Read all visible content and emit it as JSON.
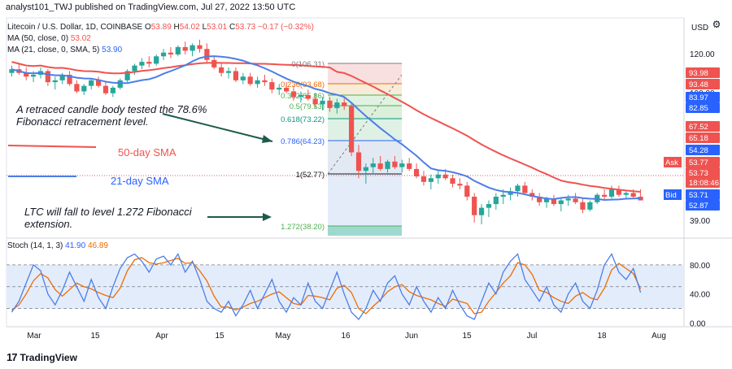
{
  "header": {
    "published": "analyst101_TWJ published on TradingView.com, Jul 27, 2022 13:50 UTC"
  },
  "legend": {
    "symbol": "Litecoin / U.S. Dollar, 1D, COINBASE",
    "o_label": "O",
    "o_value": "53.89",
    "h_label": "H",
    "h_value": "54.02",
    "l_label": "L",
    "l_value": "53.01",
    "c_label": "C",
    "c_value": "53.73",
    "change": "−0.17 (−0.32%)",
    "ma50_label": "MA (50, close, 0)",
    "ma50_value": "53.02",
    "ma21_label": "MA (21, close, 0, SMA, 5)",
    "ma21_value": "53.90"
  },
  "stoch_legend": {
    "label": "Stoch (14, 1, 3)",
    "k_value": "41.90",
    "d_value": "46.89"
  },
  "currency": "USD",
  "footer": {
    "brand": "TradingView"
  },
  "annotations": {
    "fib_tested": [
      "A retraced candle body tested the 78.6%",
      "Fibonacci retracement level."
    ],
    "sma50": "50-day SMA",
    "sma21": "21-day SMA",
    "ltc_fall": [
      "LTC will fall to level 1.272 Fibonacci",
      "extension."
    ]
  },
  "colors": {
    "up": "#26a69a",
    "down": "#ef5350",
    "sma50": "#ef5350",
    "sma21": "#4c7ee8",
    "stoch_k": "#4c7ee8",
    "stoch_d": "#ef6c00",
    "stoch_band": "#e3ecfb"
  },
  "chart_data": [
    {
      "type": "candlestick",
      "title": "Litecoin / U.S. Dollar, 1D, COINBASE",
      "ylim": [
        34,
        144
      ],
      "price_axis_labels": [
        "120.00",
        "100.00",
        "80.00",
        "39.00"
      ],
      "price_tags": [
        {
          "value": "93.98",
          "color": "#ef5350",
          "label": ""
        },
        {
          "value": "93.48",
          "color": "#ef5350",
          "label": ""
        },
        {
          "value": "83.97",
          "color": "#2962ff",
          "label": ""
        },
        {
          "value": "82.85",
          "color": "#2962ff",
          "label": ""
        },
        {
          "value": "67.52",
          "color": "#ef5350",
          "label": ""
        },
        {
          "value": "65.18",
          "color": "#ef5350",
          "label": ""
        },
        {
          "value": "54.28",
          "color": "#2962ff",
          "label": ""
        },
        {
          "value": "53.77",
          "color": "#ef5350",
          "label": "Ask"
        },
        {
          "value": "53.73",
          "color": "#ef5350",
          "label": ""
        },
        {
          "value": "18:08:46",
          "color": "#ef5350",
          "label": ""
        },
        {
          "value": "53.71",
          "color": "#2962ff",
          "label": "Bid"
        },
        {
          "value": "52.87",
          "color": "#2962ff",
          "label": ""
        }
      ],
      "x_ticks": [
        "Mar",
        "15",
        "Apr",
        "15",
        "May",
        "16",
        "Jun",
        "15",
        "Jul",
        "18",
        "Aug"
      ],
      "fibonacci": [
        {
          "ratio": "0",
          "price": "(106.31)"
        },
        {
          "ratio": "0.236",
          "price": "(93.68)"
        },
        {
          "ratio": "0.382",
          "price": "(85.86)"
        },
        {
          "ratio": "0.5",
          "price": "(79.53)"
        },
        {
          "ratio": "0.618",
          "price": "(73.22)"
        },
        {
          "ratio": "0.786",
          "price": "(64.23)"
        },
        {
          "ratio": "1",
          "price": "(52.77)"
        },
        {
          "ratio": "1.272",
          "price": "(38.20)"
        }
      ],
      "series": [
        {
          "name": "MA (50, close, 0)",
          "last": 53.02
        },
        {
          "name": "MA (21, close, 0, SMA, 5)",
          "last": 53.9
        }
      ],
      "candles": [
        [
          123,
          127,
          121,
          125
        ],
        [
          125,
          128,
          122,
          123
        ],
        [
          123,
          126,
          119,
          121
        ],
        [
          121,
          124,
          118,
          122
        ],
        [
          122,
          126,
          120,
          124
        ],
        [
          124,
          125,
          116,
          118
        ],
        [
          118,
          121,
          114,
          119
        ],
        [
          119,
          123,
          117,
          122
        ],
        [
          122,
          124,
          116,
          117
        ],
        [
          117,
          119,
          112,
          113
        ],
        [
          113,
          117,
          111,
          116
        ],
        [
          116,
          120,
          114,
          119
        ],
        [
          119,
          121,
          115,
          116
        ],
        [
          116,
          118,
          111,
          112
        ],
        [
          112,
          116,
          110,
          115
        ],
        [
          115,
          120,
          114,
          119
        ],
        [
          119,
          125,
          118,
          124
        ],
        [
          124,
          128,
          122,
          127
        ],
        [
          127,
          131,
          125,
          129
        ],
        [
          129,
          132,
          126,
          128
        ],
        [
          128,
          133,
          127,
          132
        ],
        [
          132,
          136,
          130,
          134
        ],
        [
          134,
          137,
          131,
          133
        ],
        [
          133,
          138,
          132,
          137
        ],
        [
          137,
          140,
          133,
          135
        ],
        [
          135,
          139,
          132,
          138
        ],
        [
          138,
          141,
          134,
          136
        ],
        [
          136,
          139,
          128,
          130
        ],
        [
          130,
          132,
          125,
          126
        ],
        [
          126,
          128,
          121,
          123
        ],
        [
          123,
          126,
          120,
          124
        ],
        [
          124,
          126,
          118,
          119
        ],
        [
          119,
          123,
          117,
          121
        ],
        [
          121,
          123,
          116,
          117
        ],
        [
          117,
          121,
          115,
          119
        ],
        [
          119,
          122,
          116,
          118
        ],
        [
          118,
          120,
          112,
          114
        ],
        [
          114,
          117,
          111,
          115
        ],
        [
          115,
          118,
          112,
          113
        ],
        [
          113,
          116,
          108,
          110
        ],
        [
          110,
          113,
          107,
          111
        ],
        [
          111,
          114,
          108,
          109
        ],
        [
          109,
          112,
          104,
          106
        ],
        [
          106,
          110,
          103,
          108
        ],
        [
          108,
          110,
          102,
          104
        ],
        [
          104,
          109,
          101,
          107
        ],
        [
          107,
          110,
          103,
          105
        ],
        [
          105,
          107,
          78,
          80
        ],
        [
          80,
          84,
          66,
          70
        ],
        [
          70,
          74,
          63,
          72
        ],
        [
          72,
          77,
          68,
          74
        ],
        [
          74,
          78,
          70,
          71
        ],
        [
          71,
          76,
          69,
          75
        ],
        [
          75,
          78,
          71,
          72
        ],
        [
          72,
          76,
          69,
          74
        ],
        [
          74,
          77,
          70,
          71
        ],
        [
          71,
          74,
          66,
          67
        ],
        [
          67,
          70,
          62,
          64
        ],
        [
          64,
          68,
          60,
          66
        ],
        [
          66,
          70,
          63,
          68
        ],
        [
          68,
          71,
          65,
          66
        ],
        [
          66,
          68,
          61,
          63
        ],
        [
          63,
          66,
          60,
          62
        ],
        [
          62,
          64,
          54,
          56
        ],
        [
          56,
          58,
          42,
          46
        ],
        [
          46,
          52,
          41,
          50
        ],
        [
          50,
          54,
          45,
          52
        ],
        [
          52,
          58,
          49,
          56
        ],
        [
          56,
          60,
          52,
          57
        ],
        [
          57,
          61,
          54,
          59
        ],
        [
          59,
          63,
          56,
          62
        ],
        [
          62,
          64,
          57,
          58
        ],
        [
          58,
          60,
          54,
          56
        ],
        [
          56,
          58,
          51,
          53
        ],
        [
          53,
          56,
          50,
          55
        ],
        [
          55,
          57,
          51,
          52
        ],
        [
          52,
          55,
          48,
          54
        ],
        [
          54,
          57,
          51,
          55
        ],
        [
          55,
          58,
          52,
          53
        ],
        [
          53,
          55,
          47,
          49
        ],
        [
          49,
          54,
          48,
          53
        ],
        [
          53,
          58,
          52,
          57
        ],
        [
          57,
          60,
          54,
          56
        ],
        [
          56,
          62,
          55,
          60
        ],
        [
          60,
          62,
          56,
          57
        ],
        [
          57,
          59,
          55,
          58
        ],
        [
          58,
          60,
          55,
          56
        ],
        [
          56,
          60,
          54,
          54
        ]
      ]
    },
    {
      "type": "line",
      "title": "Stoch (14, 1, 3)",
      "ylim": [
        -5,
        100
      ],
      "y_ticks": [
        "80.00",
        "40.00",
        "0.00"
      ],
      "band": [
        20,
        80
      ],
      "series": [
        {
          "name": "%K",
          "values": [
            15,
            30,
            55,
            80,
            72,
            40,
            25,
            45,
            70,
            50,
            30,
            60,
            35,
            20,
            50,
            75,
            90,
            95,
            85,
            70,
            88,
            92,
            80,
            95,
            70,
            85,
            60,
            30,
            20,
            15,
            30,
            10,
            25,
            45,
            20,
            40,
            60,
            30,
            15,
            35,
            25,
            55,
            30,
            20,
            45,
            70,
            40,
            15,
            5,
            20,
            45,
            30,
            55,
            65,
            40,
            25,
            50,
            30,
            15,
            35,
            20,
            45,
            25,
            10,
            5,
            30,
            55,
            40,
            70,
            85,
            95,
            60,
            45,
            30,
            50,
            25,
            15,
            40,
            55,
            30,
            20,
            45,
            80,
            95,
            70,
            60,
            75,
            42
          ]
        },
        {
          "name": "%D",
          "values": [
            18,
            25,
            40,
            58,
            68,
            62,
            46,
            37,
            46,
            55,
            50,
            47,
            42,
            38,
            35,
            48,
            72,
            87,
            90,
            83,
            81,
            83,
            86,
            89,
            82,
            83,
            72,
            58,
            37,
            22,
            22,
            18,
            22,
            27,
            30,
            35,
            40,
            43,
            35,
            27,
            25,
            38,
            37,
            35,
            32,
            48,
            52,
            42,
            20,
            13,
            23,
            32,
            43,
            50,
            53,
            43,
            38,
            35,
            32,
            27,
            23,
            33,
            30,
            27,
            13,
            15,
            30,
            42,
            55,
            65,
            83,
            80,
            67,
            45,
            42,
            35,
            30,
            27,
            37,
            42,
            35,
            32,
            48,
            73,
            82,
            75,
            68,
            47
          ]
        }
      ]
    }
  ]
}
